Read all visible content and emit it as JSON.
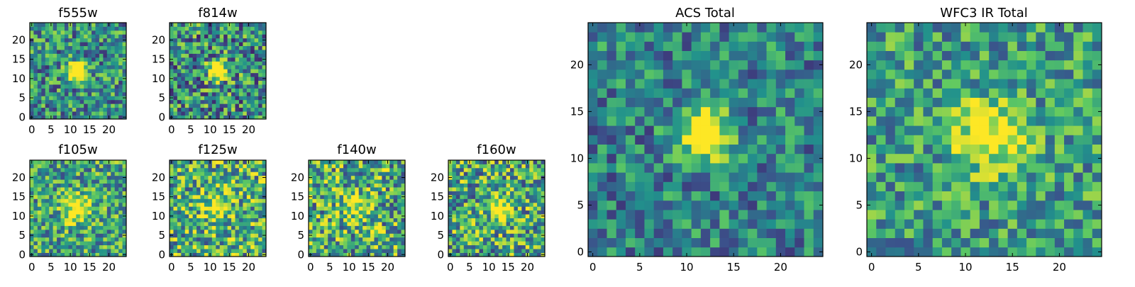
{
  "figure_title": "",
  "colormap": [
    "#440154",
    "#3b528b",
    "#21918c",
    "#5ec962",
    "#fde725"
  ],
  "chart_data": [
    {
      "type": "heatmap",
      "title": "f555w",
      "size": 25,
      "xticks": [
        "0",
        "5",
        "10",
        "15",
        "20"
      ],
      "yticks": [
        "0",
        "5",
        "10",
        "15",
        "20"
      ],
      "blob": {
        "cx": 12,
        "cy": 12,
        "sigma": 1.6,
        "amp": 1.2
      },
      "base": 0.5,
      "noise": 0.35,
      "seed": 11
    },
    {
      "type": "heatmap",
      "title": "f814w",
      "size": 25,
      "xticks": [
        "0",
        "5",
        "10",
        "15",
        "20"
      ],
      "yticks": [
        "0",
        "5",
        "10",
        "15",
        "20"
      ],
      "blob": {
        "cx": 12,
        "cy": 12,
        "sigma": 1.6,
        "amp": 1.1
      },
      "base": 0.5,
      "noise": 0.4,
      "seed": 23
    },
    {
      "type": "heatmap",
      "title": "f105w",
      "size": 25,
      "xticks": [
        "0",
        "5",
        "10",
        "15",
        "20"
      ],
      "yticks": [
        "0",
        "5",
        "10",
        "15",
        "20"
      ],
      "blob": {
        "cx": 12,
        "cy": 12,
        "sigma": 2.5,
        "amp": 0.55
      },
      "base": 0.58,
      "noise": 0.35,
      "seed": 37
    },
    {
      "type": "heatmap",
      "title": "f125w",
      "size": 25,
      "xticks": [
        "0",
        "5",
        "10",
        "15",
        "20"
      ],
      "yticks": [
        "0",
        "5",
        "10",
        "15",
        "20"
      ],
      "blob": {
        "cx": 12,
        "cy": 13,
        "sigma": 2.5,
        "amp": 0.4
      },
      "base": 0.62,
      "noise": 0.4,
      "seed": 41
    },
    {
      "type": "heatmap",
      "title": "f140w",
      "size": 25,
      "xticks": [
        "0",
        "5",
        "10",
        "15",
        "20"
      ],
      "yticks": [
        "0",
        "5",
        "10",
        "15",
        "20"
      ],
      "blob": {
        "cx": 12,
        "cy": 12,
        "sigma": 2.5,
        "amp": 0.35
      },
      "base": 0.62,
      "noise": 0.42,
      "seed": 53
    },
    {
      "type": "heatmap",
      "title": "f160w",
      "size": 25,
      "xticks": [
        "0",
        "5",
        "10",
        "15",
        "20"
      ],
      "yticks": [
        "0",
        "5",
        "10",
        "15",
        "20"
      ],
      "blob": {
        "cx": 13,
        "cy": 12,
        "sigma": 2.2,
        "amp": 0.55
      },
      "base": 0.6,
      "noise": 0.4,
      "seed": 67
    },
    {
      "type": "heatmap",
      "title": "ACS Total",
      "size": 25,
      "xticks": [
        "0",
        "5",
        "10",
        "15",
        "20"
      ],
      "yticks": [
        "0",
        "5",
        "10",
        "15",
        "20"
      ],
      "blob": {
        "cx": 12,
        "cy": 12.5,
        "sigma": 1.8,
        "amp": 0.9
      },
      "base": 0.45,
      "noise": 0.28,
      "seed": 79
    },
    {
      "type": "heatmap",
      "title": "WFC3 IR Total",
      "size": 25,
      "xticks": [
        "0",
        "5",
        "10",
        "15",
        "20"
      ],
      "yticks": [
        "0",
        "5",
        "10",
        "15",
        "20"
      ],
      "blob": {
        "cx": 12.5,
        "cy": 12.5,
        "sigma": 2.6,
        "amp": 0.55
      },
      "base": 0.55,
      "noise": 0.3,
      "seed": 97
    }
  ]
}
